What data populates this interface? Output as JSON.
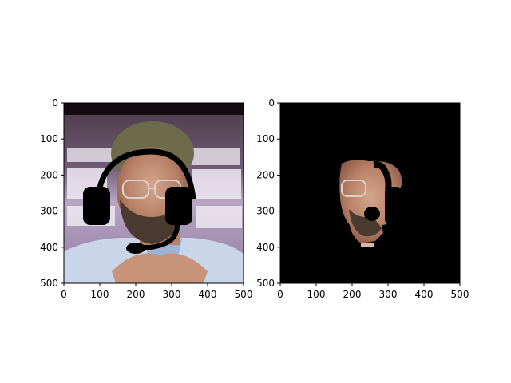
{
  "figure": {
    "background": "#ffffff",
    "axis_color": "#000000"
  },
  "chart_data": [
    {
      "type": "image",
      "content": "photo of a bearded man with glasses, black headset overlay",
      "xlim": [
        0,
        500
      ],
      "ylim": [
        500,
        0
      ],
      "xticks": [
        0,
        100,
        200,
        300,
        400,
        500
      ],
      "yticks": [
        0,
        100,
        200,
        300,
        400,
        500
      ],
      "xtick_labels": [
        "0",
        "100",
        "200",
        "300",
        "400",
        "500"
      ],
      "ytick_labels": [
        "0",
        "100",
        "200",
        "300",
        "400",
        "500"
      ],
      "title": "",
      "xlabel": "",
      "ylabel": "",
      "grid": false,
      "overlay_color": "#000000"
    },
    {
      "type": "image",
      "content": "segmentation mask: face region kept on black background, headset shapes cut out",
      "xlim": [
        0,
        500
      ],
      "ylim": [
        500,
        0
      ],
      "xticks": [
        0,
        100,
        200,
        300,
        400,
        500
      ],
      "yticks": [
        0,
        100,
        200,
        300,
        400,
        500
      ],
      "xtick_labels": [
        "0",
        "100",
        "200",
        "300",
        "400",
        "500"
      ],
      "ytick_labels": [
        "0",
        "100",
        "200",
        "300",
        "400",
        "500"
      ],
      "title": "",
      "xlabel": "",
      "ylabel": "",
      "grid": false,
      "background_color": "#000000"
    }
  ]
}
